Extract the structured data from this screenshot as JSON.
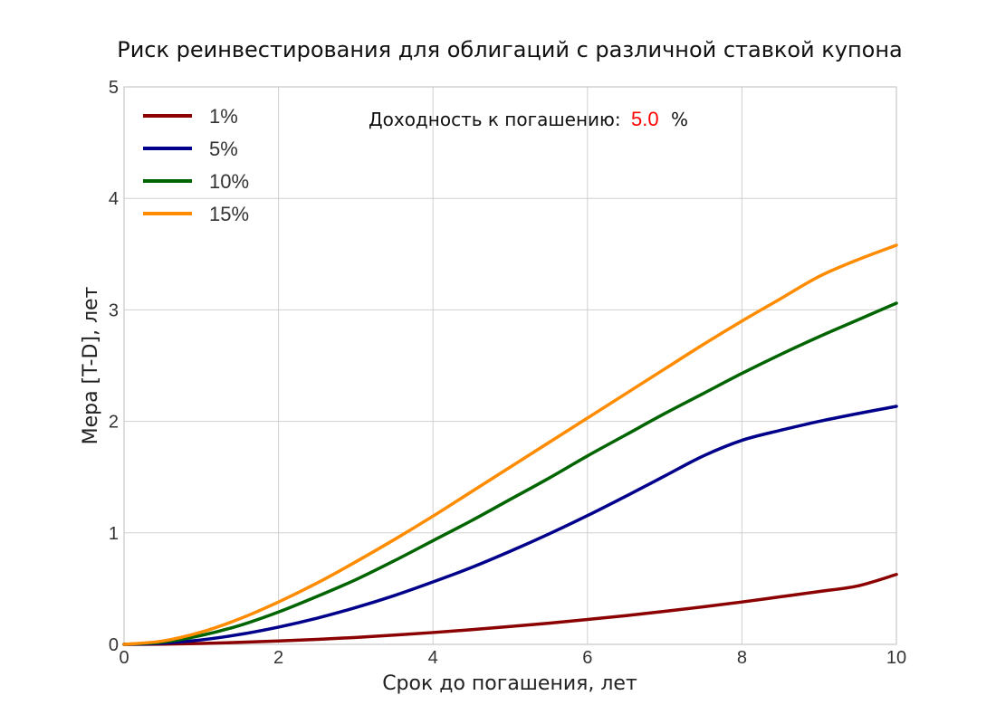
{
  "chart_data": {
    "type": "line",
    "title": "Риск реинвестирования для облигаций с различной ставкой купона",
    "xlabel": "Срок до погашения, лет",
    "ylabel": "Мера [T-D], лет",
    "xlim": [
      0,
      10
    ],
    "ylim": [
      0,
      5
    ],
    "xticks": [
      0,
      2,
      4,
      6,
      8,
      10
    ],
    "yticks": [
      0,
      1,
      2,
      3,
      4,
      5
    ],
    "grid": true,
    "legend_position": "top-left",
    "x": [
      0,
      0.5,
      1,
      1.5,
      2,
      2.5,
      3,
      3.5,
      4,
      4.5,
      5,
      5.5,
      6,
      6.5,
      7,
      7.5,
      8,
      8.5,
      9,
      9.5,
      10
    ],
    "series": [
      {
        "name": "1%",
        "color": "#8b0000",
        "values": [
          0,
          0.002,
          0.008,
          0.018,
          0.03,
          0.045,
          0.062,
          0.083,
          0.106,
          0.132,
          0.16,
          0.19,
          0.223,
          0.258,
          0.296,
          0.337,
          0.38,
          0.427,
          0.474,
          0.524,
          0.627
        ]
      },
      {
        "name": "5%",
        "color": "#00008b",
        "values": [
          0,
          0.01,
          0.04,
          0.089,
          0.155,
          0.235,
          0.33,
          0.438,
          0.56,
          0.69,
          0.835,
          0.99,
          1.155,
          1.33,
          1.51,
          1.69,
          1.83,
          1.92,
          2.0,
          2.07,
          2.135
        ]
      },
      {
        "name": "10%",
        "color": "#006400",
        "values": [
          0,
          0.02,
          0.08,
          0.17,
          0.29,
          0.43,
          0.58,
          0.75,
          0.93,
          1.11,
          1.3,
          1.49,
          1.69,
          1.88,
          2.07,
          2.25,
          2.43,
          2.6,
          2.76,
          2.91,
          3.06
        ]
      },
      {
        "name": "15%",
        "color": "#ff8c00",
        "values": [
          0,
          0.03,
          0.11,
          0.23,
          0.38,
          0.55,
          0.74,
          0.94,
          1.15,
          1.37,
          1.59,
          1.81,
          2.03,
          2.25,
          2.47,
          2.69,
          2.9,
          3.1,
          3.3,
          3.45,
          3.58
        ]
      }
    ],
    "annotation": {
      "label": "Доходность к погашению:",
      "value": "5.0",
      "unit": "%",
      "value_color": "#ff0000"
    }
  }
}
